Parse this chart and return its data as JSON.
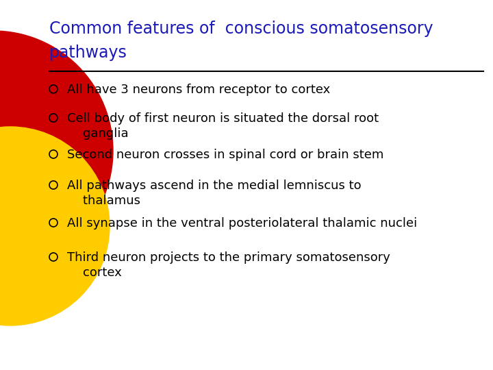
{
  "title_line1": "Common features of  conscious somatosensory",
  "title_line2": "pathways",
  "title_color": "#1a1ab8",
  "bg_color": "#ffffff",
  "line_color": "#000000",
  "bullet_color": "#000000",
  "text_color": "#000000",
  "bullets": [
    "All have 3 neurons from receptor to cortex",
    "Cell body of first neuron is situated the dorsal root\n    ganglia",
    "Second neuron crosses in spinal cord or brain stem",
    "All pathways ascend in the medial lemniscus to\n    thalamus",
    "All synapse in the ventral posteriolateral thalamic nuclei",
    "Third neuron projects to the primary somatosensory\n    cortex"
  ],
  "red_color": "#cc0000",
  "yellow_color": "#ffcc00",
  "figsize": [
    7.2,
    5.4
  ],
  "dpi": 100
}
